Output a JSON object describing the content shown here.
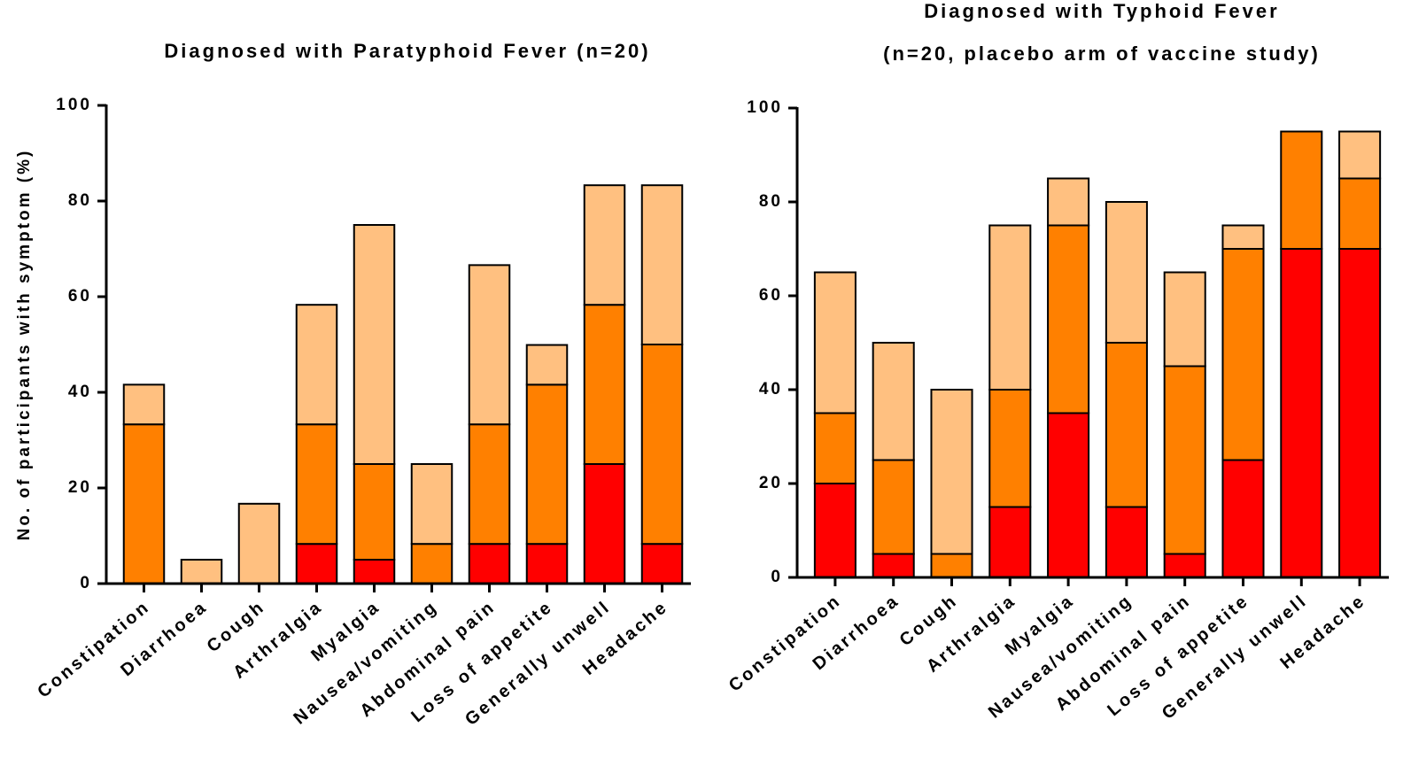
{
  "chart_data": [
    {
      "type": "bar",
      "stacked": true,
      "title": [
        "Diagnosed with Paratyphoid Fever (n=20)"
      ],
      "y_label": "No. of participants with symptom (%)",
      "categories": [
        "Constipation",
        "Diarrhoea",
        "Cough",
        "Arthralgia",
        "Myalgia",
        "Nausea/vomiting",
        "Abdominal pain",
        "Loss of appetite",
        "Generally unwell",
        "Headache"
      ],
      "series": [
        {
          "color": "#ff0000",
          "values": [
            0,
            0,
            0,
            8.3,
            5,
            0,
            8.3,
            8.3,
            25,
            8.3
          ]
        },
        {
          "color": "#ff8000",
          "values": [
            33.3,
            0,
            0,
            25,
            20,
            8.3,
            25,
            33.3,
            33.3,
            41.7
          ]
        },
        {
          "color": "#ffc080",
          "values": [
            8.3,
            5,
            16.7,
            25,
            50,
            16.7,
            33.3,
            8.3,
            25,
            33.3
          ]
        }
      ],
      "ylim": [
        0,
        100
      ],
      "yticks": [
        0,
        20,
        40,
        60,
        80,
        100
      ]
    },
    {
      "type": "bar",
      "stacked": true,
      "title": [
        "Diagnosed with Typhoid Fever",
        "(n=20, placebo arm of vaccine study)"
      ],
      "categories": [
        "Constipation",
        "Diarrhoea",
        "Cough",
        "Arthralgia",
        "Myalgia",
        "Nausea/vomiting",
        "Abdominal pain",
        "Loss of appetite",
        "Generally unwell",
        "Headache"
      ],
      "series": [
        {
          "color": "#ff0000",
          "values": [
            20,
            5,
            0,
            15,
            35,
            15,
            5,
            25,
            70,
            70
          ]
        },
        {
          "color": "#ff8000",
          "values": [
            15,
            20,
            5,
            25,
            40,
            35,
            40,
            45,
            25,
            15
          ]
        },
        {
          "color": "#ffc080",
          "values": [
            30,
            25,
            35,
            35,
            10,
            30,
            20,
            5,
            0,
            10
          ]
        }
      ],
      "ylim": [
        0,
        100
      ],
      "yticks": [
        0,
        20,
        40,
        60,
        80,
        100
      ]
    }
  ]
}
